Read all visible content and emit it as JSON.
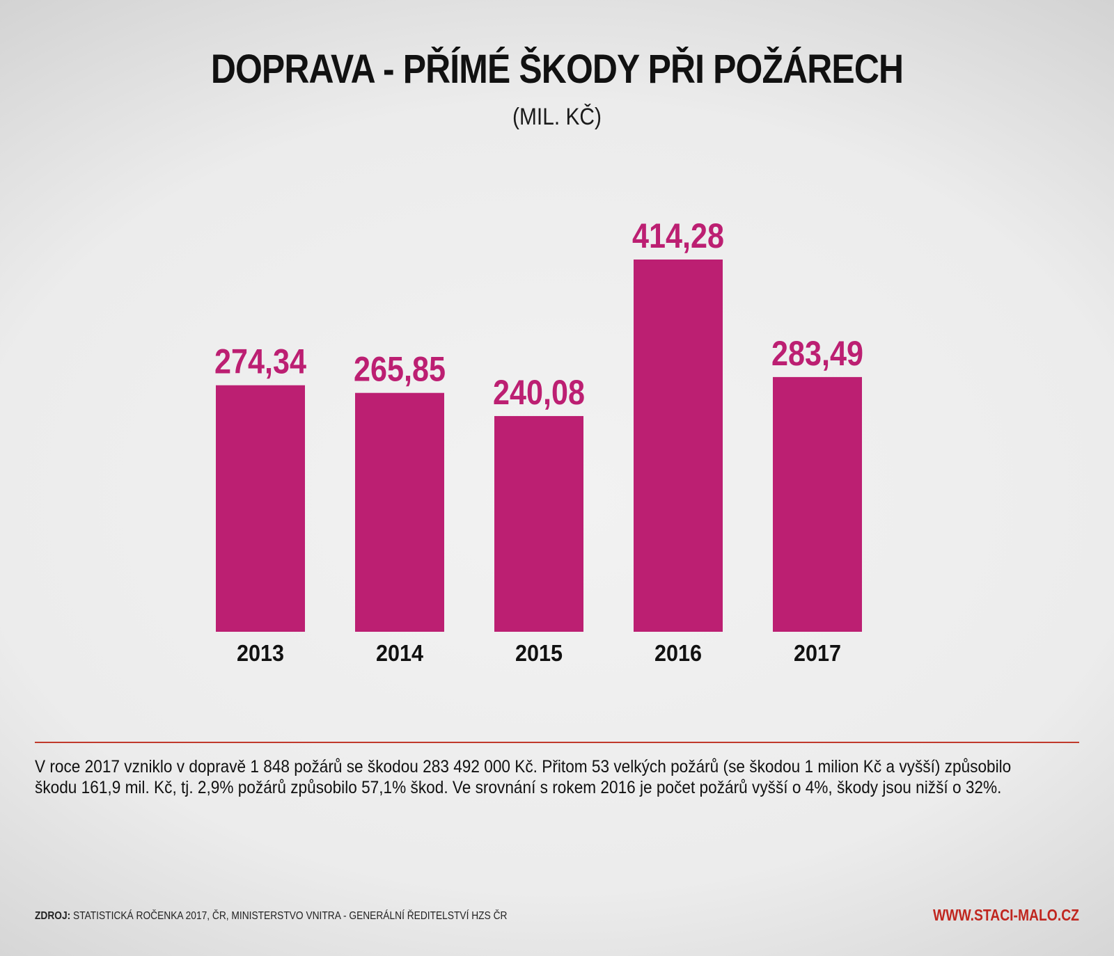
{
  "header": {
    "title": "DOPRAVA - PŘÍMÉ ŠKODY PŘI POŽÁRECH",
    "subtitle": "(MIL. KČ)"
  },
  "chart_data": {
    "type": "bar",
    "title": "DOPRAVA - PŘÍMÉ ŠKODY PŘI POŽÁRECH",
    "subtitle": "(MIL. KČ)",
    "xlabel": "",
    "ylabel": "",
    "categories": [
      "2013",
      "2014",
      "2015",
      "2016",
      "2017"
    ],
    "values": [
      274.34,
      265.85,
      240.08,
      414.28,
      283.49
    ],
    "value_labels": [
      "274,34",
      "265,85",
      "240,08",
      "414,28",
      "283,49"
    ],
    "ylim": [
      0,
      414.28
    ],
    "bar_color": "#bc1f72",
    "label_color": "#bc1f72",
    "grid": false,
    "legend": "none"
  },
  "description": "V roce 2017 vzniklo v dopravě 1 848 požárů se škodou 283 492 000 Kč. Přitom 53 velkých požárů (se škodou 1 milion Kč a vyšší) způsobilo škodu 161,9 mil. Kč, tj. 2,9% požárů způsobilo 57,1% škod. Ve srovnání s rokem 2016 je počet požárů vyšší o 4%, škody jsou nižší o 32%.",
  "footer": {
    "source_label": "ZDROJ:",
    "source_text": "STATISTICKÁ ROČENKA 2017, ČR, MINISTERSTVO VNITRA - GENERÁLNÍ ŘEDITELSTVÍ HZS ČR",
    "url": "WWW.STACI-MALO.CZ"
  },
  "colors": {
    "accent": "#c0392b",
    "url": "#c0261f",
    "text": "#111111"
  }
}
